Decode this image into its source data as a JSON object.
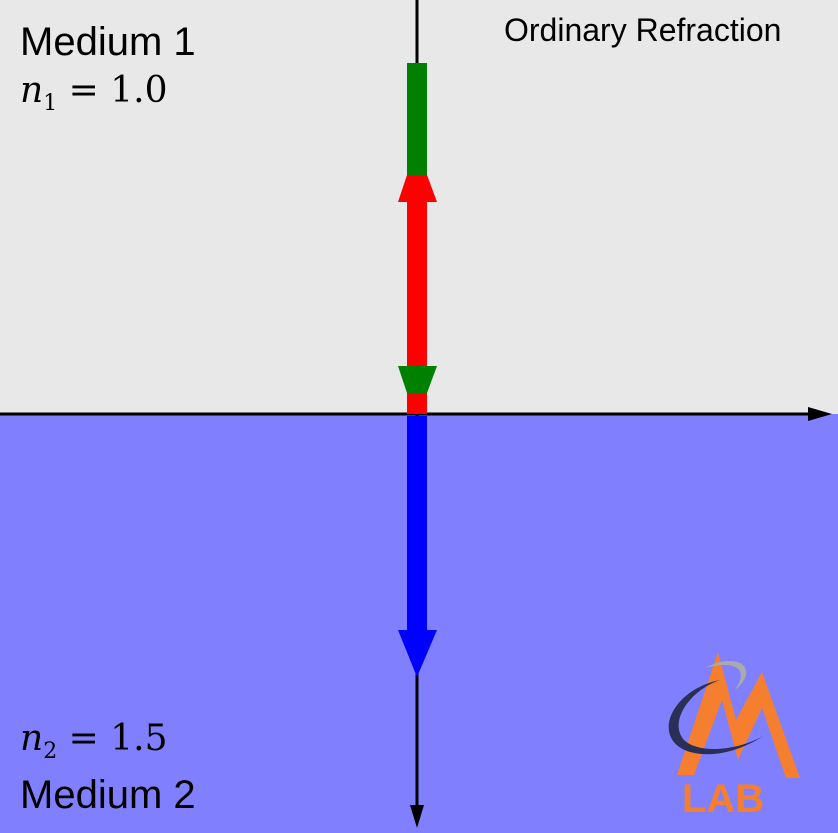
{
  "title": "Ordinary Refraction",
  "medium1": {
    "label": "Medium 1",
    "n_symbol": "n",
    "n_sub": "1",
    "n_value": "= 1.0"
  },
  "medium2": {
    "label": "Medium 2",
    "n_symbol": "n",
    "n_sub": "2",
    "n_value": "= 1.5"
  },
  "colors": {
    "medium1": "#e8e8e8",
    "medium2": "#8080ff",
    "incident": "#008000",
    "reflected": "#ff0000",
    "transmitted": "#0000ff"
  },
  "logo": {
    "text": "LAB"
  }
}
